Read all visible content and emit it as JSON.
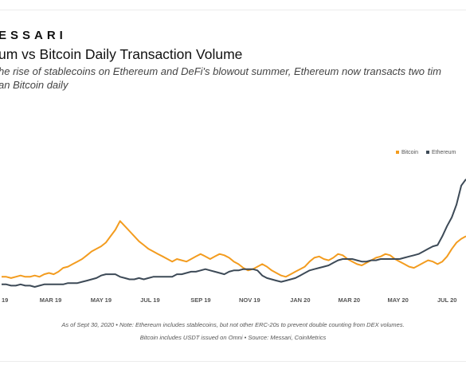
{
  "header": {
    "brand": "ESSARI",
    "title": "um vs Bitcoin Daily Transaction Volume",
    "subtitle_line1": "he rise of stablecoins on Ethereum and DeFi's blowout summer, Ethereum now transacts two tim",
    "subtitle_line2": "an Bitcoin daily"
  },
  "footer": {
    "line1": "As of Sept 30, 2020 • Note: Ethereum includes stablecoins, but not other ERC-20s to prevent double counting from DEX volumes.",
    "line2": "Bitcoin includes USDT issued on Omni • Source: Messari, CoinMetrics"
  },
  "chart_data": {
    "type": "line",
    "title": "um vs Bitcoin Daily Transaction Volume",
    "xlabel": "",
    "ylabel": "",
    "grid": false,
    "legend_position": "top-right",
    "x_tick_labels": [
      "19",
      "MAR 19",
      "MAY 19",
      "JUL 19",
      "SEP 19",
      "NOV 19",
      "JAN 20",
      "MAR 20",
      "MAY 20",
      "JUL 20"
    ],
    "x_index": [
      0,
      3,
      6,
      9,
      12,
      15,
      18,
      21,
      24,
      27,
      30,
      33,
      36,
      39,
      42,
      45,
      48,
      51,
      54,
      57,
      60,
      63,
      66,
      69,
      72,
      75,
      78,
      81,
      84,
      87,
      90,
      93,
      96,
      99,
      102,
      105,
      108,
      111,
      114,
      117,
      120,
      123,
      126,
      129,
      132,
      135,
      138,
      141,
      144,
      147,
      150,
      153,
      156,
      159,
      162,
      165,
      168,
      171,
      174,
      177,
      180,
      183,
      186,
      189,
      192,
      195,
      198,
      201,
      204,
      207,
      210,
      213,
      216,
      219,
      222,
      225,
      228,
      231,
      234,
      237,
      240,
      243,
      246,
      249,
      252,
      255,
      258,
      261,
      264,
      267,
      270,
      273,
      276,
      279,
      282,
      285,
      288,
      291,
      294
    ],
    "tick_positions": [
      0,
      31,
      63,
      94,
      126,
      157,
      189,
      220,
      251,
      282
    ],
    "x_max": 294,
    "y_min": 0,
    "y_max": 100,
    "series": [
      {
        "name": "Bitcoin",
        "color": "#f39c1f",
        "values": [
          8,
          8,
          7,
          8,
          9,
          8,
          8,
          9,
          8,
          10,
          11,
          10,
          12,
          15,
          16,
          18,
          20,
          22,
          25,
          28,
          30,
          32,
          35,
          40,
          45,
          52,
          48,
          44,
          40,
          36,
          33,
          30,
          28,
          26,
          24,
          22,
          20,
          22,
          21,
          20,
          22,
          24,
          26,
          24,
          22,
          24,
          26,
          25,
          23,
          20,
          18,
          15,
          13,
          14,
          16,
          18,
          16,
          13,
          11,
          9,
          8,
          10,
          12,
          14,
          16,
          20,
          23,
          24,
          22,
          21,
          23,
          26,
          25,
          22,
          20,
          18,
          17,
          19,
          21,
          23,
          24,
          26,
          25,
          22,
          20,
          18,
          16,
          15,
          17,
          19,
          21,
          20,
          18,
          20,
          24,
          30,
          35,
          38,
          40
        ]
      },
      {
        "name": "Ethereum",
        "color": "#3d4a57",
        "values": [
          2,
          2,
          1,
          1,
          2,
          1,
          1,
          0,
          1,
          2,
          2,
          2,
          2,
          2,
          3,
          3,
          3,
          4,
          5,
          6,
          7,
          9,
          10,
          10,
          10,
          8,
          7,
          6,
          6,
          7,
          6,
          7,
          8,
          8,
          8,
          8,
          8,
          10,
          10,
          11,
          12,
          12,
          13,
          14,
          13,
          12,
          11,
          10,
          12,
          13,
          13,
          14,
          14,
          14,
          13,
          9,
          7,
          6,
          5,
          4,
          5,
          6,
          7,
          9,
          11,
          13,
          14,
          15,
          16,
          17,
          19,
          21,
          22,
          22,
          22,
          21,
          20,
          20,
          21,
          21,
          22,
          22,
          22,
          22,
          22,
          23,
          24,
          25,
          26,
          28,
          30,
          32,
          33,
          40,
          48,
          55,
          65,
          80,
          85
        ]
      }
    ]
  }
}
